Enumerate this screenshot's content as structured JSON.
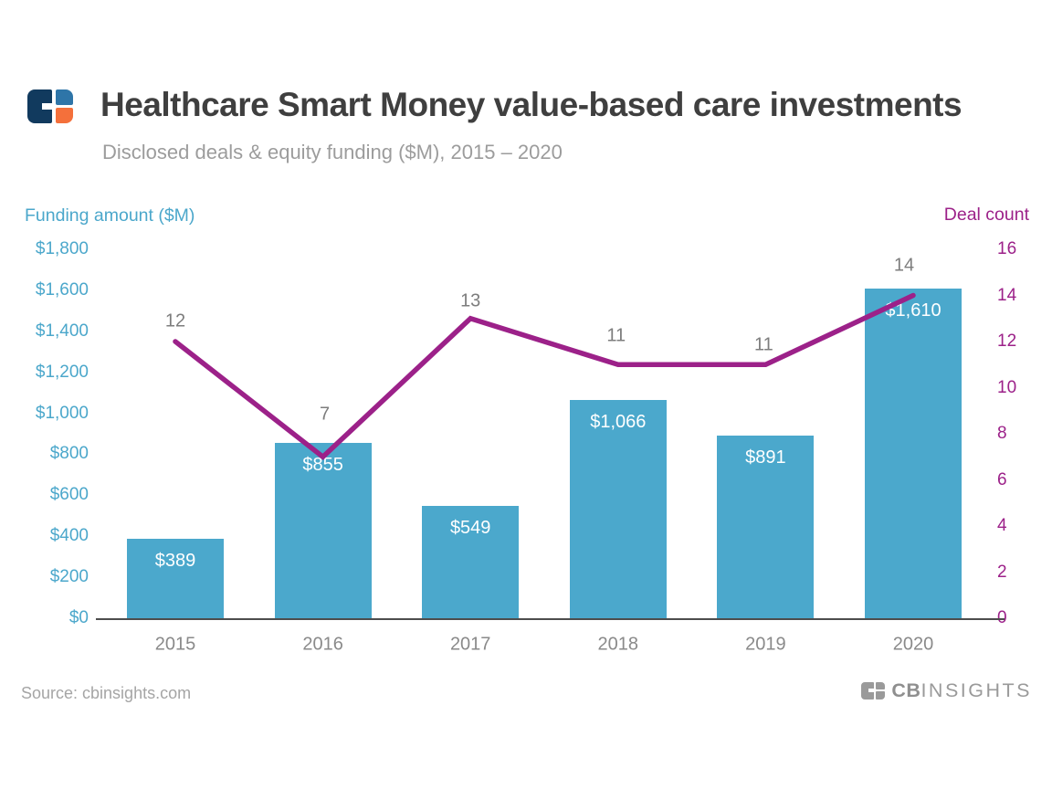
{
  "header": {
    "title": "Healthcare Smart Money value-based care investments",
    "subtitle": "Disclosed deals & equity funding ($M), 2015 – 2020"
  },
  "footer": {
    "source": "Source: cbinsights.com",
    "brand_bold": "CB",
    "brand_light": "INSIGHTS"
  },
  "colors": {
    "bar": "#4BA8CC",
    "line": "#9C2189",
    "left_axis_text": "#4BA7CB",
    "right_axis_text": "#9C2189",
    "title_text": "#3F3F3F",
    "subtitle_text": "#9C9C9C",
    "gray_label": "#8A8A8A",
    "axis_line": "#4D4D4D",
    "footer_gray": "#9A9A9A",
    "logo_navy": "#113A5E",
    "logo_blue": "#2E75A8",
    "logo_orange": "#F4703B"
  },
  "chart_data": {
    "type": "bar",
    "subtype": "bar+line dual-axis",
    "title": "Healthcare Smart Money value-based care investments",
    "subtitle": "Disclosed deals & equity funding ($M), 2015 – 2020",
    "categories": [
      "2015",
      "2016",
      "2017",
      "2018",
      "2019",
      "2020"
    ],
    "series": [
      {
        "name": "Funding amount ($M)",
        "type": "bar",
        "axis": "left",
        "values": [
          389,
          855,
          549,
          1066,
          891,
          1610
        ],
        "data_labels": [
          "$389",
          "$855",
          "$549",
          "$1,066",
          "$891",
          "$1,610"
        ],
        "color": "#4BA8CC"
      },
      {
        "name": "Deal count",
        "type": "line",
        "axis": "right",
        "values": [
          12,
          7,
          13,
          11,
          11,
          14
        ],
        "data_labels": [
          "12",
          "7",
          "13",
          "11",
          "11",
          "14"
        ],
        "color": "#9C2189"
      }
    ],
    "left_axis": {
      "title": "Funding amount ($M)",
      "min": 0,
      "max": 1800,
      "step": 200,
      "ticks": [
        "$1,800",
        "$1,600",
        "$1,400",
        "$1,200",
        "$1,000",
        "$800",
        "$600",
        "$400",
        "$200",
        "$0"
      ]
    },
    "right_axis": {
      "title": "Deal count",
      "min": 0,
      "max": 16,
      "step": 2,
      "ticks": [
        "16",
        "14",
        "12",
        "10",
        "8",
        "6",
        "4",
        "2",
        "0"
      ]
    },
    "grid": false,
    "legend": "none"
  }
}
